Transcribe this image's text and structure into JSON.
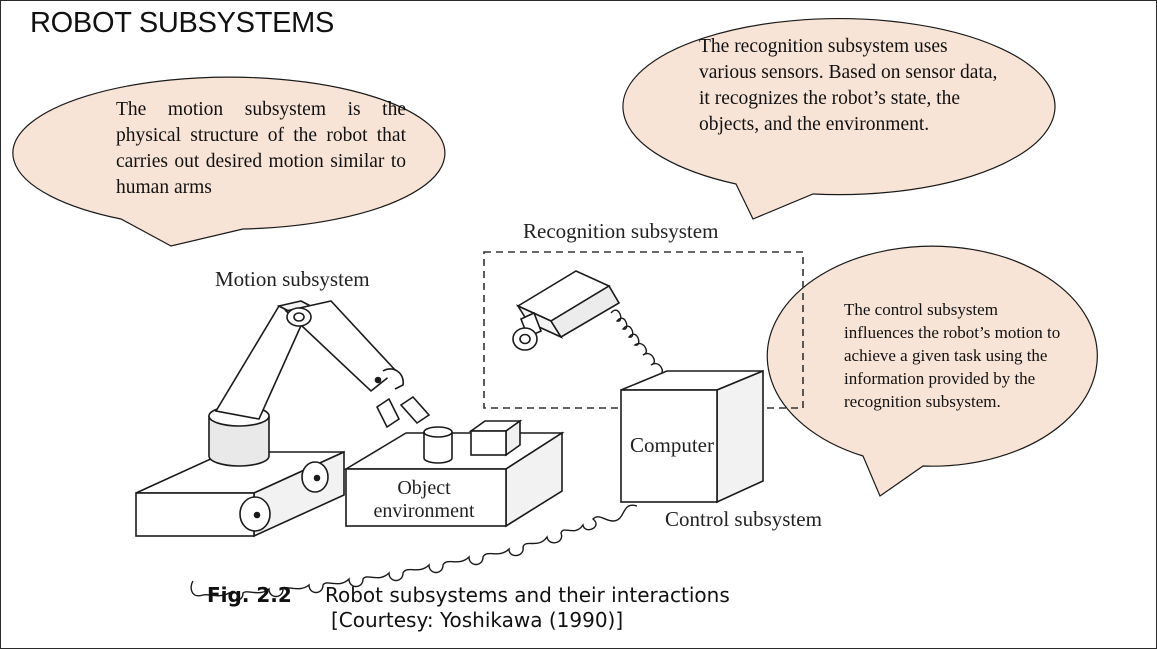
{
  "slide": {
    "title": "ROBOT SUBSYSTEMS"
  },
  "callouts": {
    "motion": "The motion subsystem is the physical structure of the robot that carries out desired motion similar to human arms",
    "recognition": "The recognition subsystem uses various sensors. Based on sensor data, it recognizes the robot’s state, the objects, and the environment.",
    "control": "The control subsystem influences the robot’s motion to achieve a given task using the information provided by the recognition subsystem."
  },
  "figure": {
    "labels": {
      "recognition": "Recognition subsystem",
      "motion": "Motion subsystem",
      "computer": "Computer",
      "control": "Control subsystem",
      "object_line1": "Object",
      "object_line2": "environment"
    },
    "caption_number": "Fig. 2.2",
    "caption_text": "Robot subsystems and their interactions",
    "caption_courtesy": "[Courtesy: Yoshikawa (1990)]"
  },
  "colors": {
    "callout_fill": "#f8e4d7",
    "stroke": "#1a1a1a"
  }
}
